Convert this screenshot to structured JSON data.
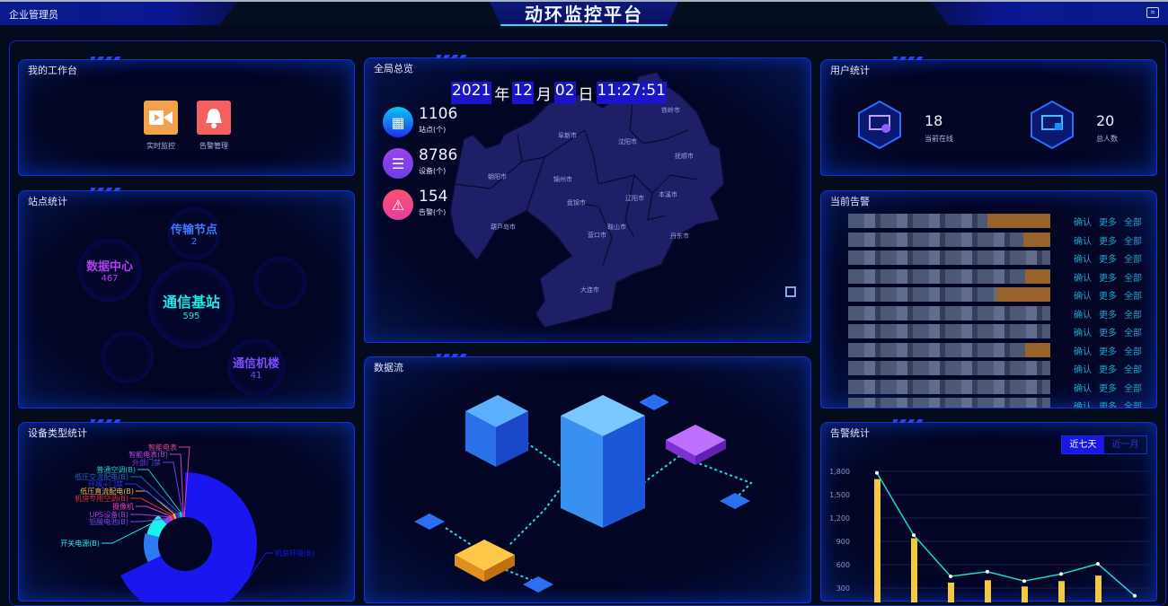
{
  "header": {
    "user": "企业管理员",
    "title": "动环监控平台",
    "right_icon": "chart-icon"
  },
  "workbench": {
    "title": "我的工作台",
    "items": [
      {
        "label": "实时监控",
        "icon": "video-camera-icon",
        "color": "#f5a04a"
      },
      {
        "label": "告警管理",
        "icon": "bell-icon",
        "color": "#f46060"
      }
    ]
  },
  "site_stats": {
    "title": "站点统计",
    "bubbles": [
      {
        "label": "传输节点",
        "value": "2",
        "color": "#3a7cff"
      },
      {
        "label": "数据中心",
        "value": "467",
        "color": "#b040f0"
      },
      {
        "label": "通信基站",
        "value": "595",
        "color": "#1fe8e8"
      },
      {
        "label": "通信机楼",
        "value": "41",
        "color": "#7a4cff"
      }
    ]
  },
  "overview": {
    "title": "全局总览",
    "datetime": {
      "year": "2021",
      "year_unit": "年",
      "month": "12",
      "month_unit": "月",
      "day": "02",
      "day_unit": "日",
      "time": "11:27:51"
    },
    "stats": [
      {
        "value": "1106",
        "label": "站点(个)",
        "icon": "building-icon"
      },
      {
        "value": "8786",
        "label": "设备(个)",
        "icon": "server-list-icon"
      },
      {
        "value": "154",
        "label": "告警(个)",
        "icon": "warning-icon"
      }
    ],
    "map_cities": [
      "铁岭市",
      "阜新市",
      "沈阳市",
      "抚顺市",
      "朝阳市",
      "锦州市",
      "盘锦市",
      "辽阳市",
      "本溪市",
      "葫芦岛市",
      "鞍山市",
      "营口市",
      "丹东市",
      "大连市"
    ],
    "map_fill": "#1e1f66"
  },
  "dataflow": {
    "title": "数据流"
  },
  "user_stats": {
    "title": "用户统计",
    "online": {
      "value": "18",
      "label": "当前在线"
    },
    "total": {
      "value": "20",
      "label": "总人数"
    }
  },
  "alarms": {
    "title": "当前告警",
    "rows": 10,
    "actions": [
      "确认",
      "更多",
      "全部"
    ]
  },
  "device_types": {
    "title": "设备类型统计"
  },
  "alarm_stats": {
    "title": "告警统计",
    "tabs": [
      "近七天",
      "近一月"
    ],
    "active_tab": "近七天"
  },
  "chart_data": [
    {
      "type": "pie",
      "title": "设备类型统计",
      "variant": "rose-donut",
      "slices": [
        {
          "name": "机房环境(B)",
          "value": 60,
          "color": "#1a16f0"
        },
        {
          "name": "",
          "value": 10,
          "color": "#2a7cf0"
        },
        {
          "name": "开关电源(B)",
          "value": 8,
          "color": "#1ef0f0"
        },
        {
          "name": "铅酸电池(B)",
          "value": 2,
          "color": "#7a4cf0"
        },
        {
          "name": "UPS设备(B)",
          "value": 1,
          "color": "#a040e0"
        },
        {
          "name": "摄像机",
          "value": 1,
          "color": "#e040c0"
        },
        {
          "name": "机房专用空调(B)",
          "value": 1,
          "color": "#e03030"
        },
        {
          "name": "低压直流配电(B)",
          "value": 1,
          "color": "#f0c040"
        },
        {
          "name": "环境+门禁",
          "value": 1,
          "color": "#2a30f0"
        },
        {
          "name": "低压交流配电(B)",
          "value": 1,
          "color": "#2a60c0"
        },
        {
          "name": "普通空调(B)",
          "value": 1,
          "color": "#20d0c0"
        },
        {
          "name": "外部门禁",
          "value": 0.5,
          "color": "#6a40e0"
        },
        {
          "name": "智能电表(B)",
          "value": 0.5,
          "color": "#c040e0"
        },
        {
          "name": "智能电表",
          "value": 0.5,
          "color": "#e04090"
        }
      ]
    },
    {
      "type": "bar+line",
      "title": "告警统计",
      "y_ticks": [
        "300",
        "600",
        "900",
        "1,200",
        "1,500",
        "1,800"
      ],
      "ylim": [
        0,
        1800
      ],
      "grid": true,
      "bars": {
        "values": [
          1700,
          940,
          370,
          400,
          320,
          390,
          460,
          null
        ],
        "color": "#f5c842"
      },
      "line": {
        "values": [
          1780,
          980,
          450,
          510,
          390,
          480,
          610,
          200
        ],
        "color": "#1fd8d0"
      }
    }
  ]
}
